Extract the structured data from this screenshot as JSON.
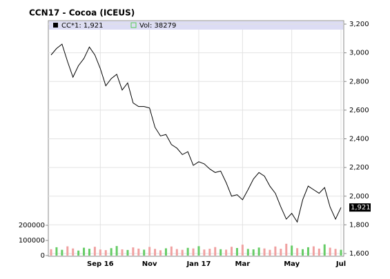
{
  "chart_data": {
    "type": "line",
    "title": "CCN17 - Cocoa (ICEUS)",
    "categories": [
      null,
      null,
      null,
      null,
      null,
      null,
      null,
      null,
      null,
      "Sep 16",
      null,
      null,
      null,
      null,
      null,
      null,
      null,
      null,
      "Nov",
      null,
      null,
      null,
      null,
      null,
      null,
      null,
      null,
      "Jan 17",
      null,
      null,
      null,
      null,
      null,
      null,
      null,
      "Mar",
      null,
      null,
      null,
      null,
      null,
      null,
      null,
      null,
      "May",
      null,
      null,
      null,
      null,
      null,
      null,
      null,
      null,
      "Jul"
    ],
    "series": [
      {
        "name": "CC*1: 1,921",
        "type": "line",
        "axis": "y",
        "color": "#000000",
        "values": [
          2985,
          3030,
          3060,
          2940,
          2830,
          2910,
          2960,
          3040,
          2985,
          2890,
          2770,
          2820,
          2850,
          2740,
          2790,
          2650,
          2625,
          2625,
          2615,
          2480,
          2420,
          2430,
          2360,
          2335,
          2290,
          2310,
          2215,
          2240,
          2225,
          2190,
          2165,
          2175,
          2095,
          2000,
          2010,
          1975,
          2045,
          2120,
          2165,
          2140,
          2070,
          2020,
          1925,
          1840,
          1880,
          1820,
          1975,
          2070,
          2045,
          2020,
          2060,
          1925,
          1840,
          1921
        ]
      },
      {
        "name": "Vol: 38279",
        "type": "bar",
        "axis": "y2",
        "color": "#55cc55",
        "values": [
          42000,
          55000,
          38000,
          61000,
          47000,
          33000,
          52000,
          45000,
          58000,
          40000,
          36000,
          49000,
          63000,
          41000,
          37000,
          54000,
          46000,
          39000,
          57000,
          44000,
          35000,
          48000,
          60000,
          43000,
          38000,
          51000,
          47000,
          62000,
          40000,
          45000,
          56000,
          42000,
          39000,
          58000,
          50000,
          72000,
          44000,
          41000,
          53000,
          47000,
          38000,
          60000,
          45000,
          78000,
          66000,
          49000,
          42000,
          55000,
          61000,
          46000,
          74000,
          52000,
          44000,
          38279
        ]
      }
    ],
    "up_color": "#66cc66",
    "down_color": "#f0a0a0",
    "last_price_label": "1,921",
    "ylim": [
      1600,
      3200
    ],
    "yticks": [
      {
        "value": 1600,
        "label": "1,600"
      },
      {
        "value": 1800,
        "label": "1,800"
      },
      {
        "value": 2000,
        "label": "2,000"
      },
      {
        "value": 2200,
        "label": "2,200"
      },
      {
        "value": 2400,
        "label": "2,400"
      },
      {
        "value": 2600,
        "label": "2,600"
      },
      {
        "value": 2800,
        "label": "2,800"
      },
      {
        "value": 3000,
        "label": "3,000"
      },
      {
        "value": 3200,
        "label": "3,200"
      }
    ],
    "y2lim": [
      0,
      200000
    ],
    "y2ticks": [
      0,
      100000,
      200000
    ],
    "grid": true
  }
}
